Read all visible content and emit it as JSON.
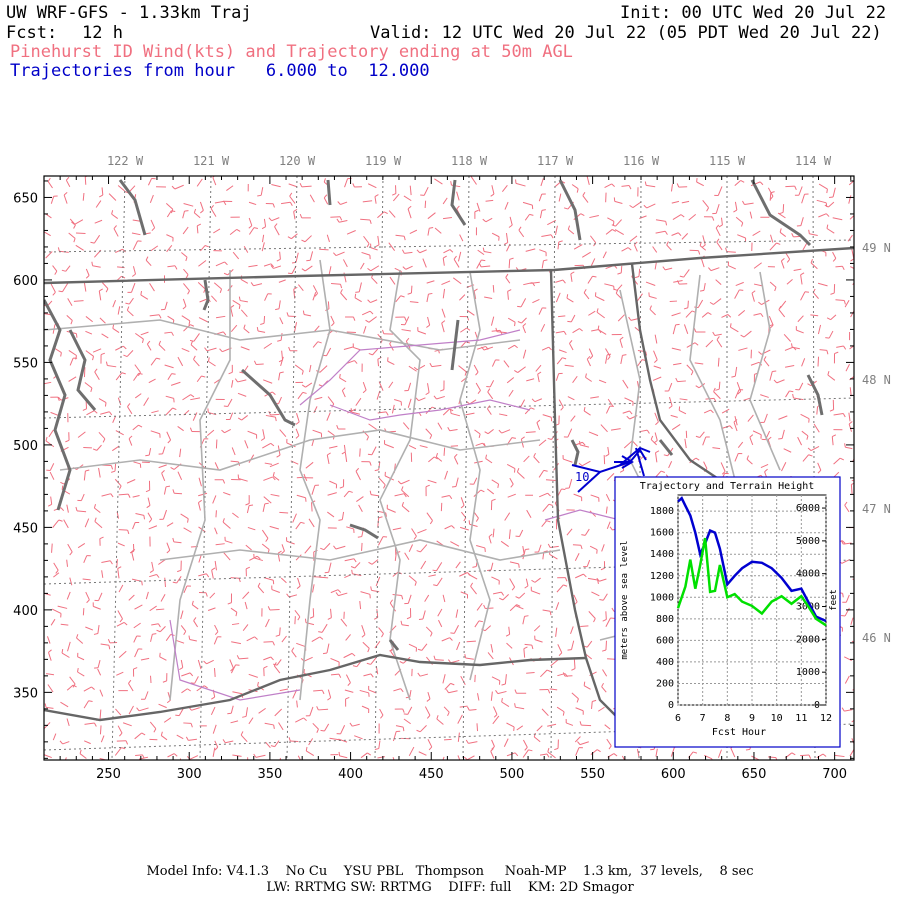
{
  "header": {
    "title": "UW WRF-GFS - 1.33km Traj",
    "init": "Init: 00 UTC Wed 20 Jul 22",
    "fcst_label": "Fcst:",
    "fcst_value": "12 h",
    "valid": "Valid: 12 UTC Wed 20 Jul 22 (05 PDT Wed 20 Jul 22)",
    "subtitle": "Pinehurst ID Wind(kts) and Trajectory ending at 50m AGL",
    "traj_range": "Trajectories from hour   6.000 to  12.000"
  },
  "map": {
    "x_ticks": [
      "250",
      "300",
      "350",
      "400",
      "450",
      "500",
      "550",
      "600",
      "650",
      "700"
    ],
    "y_ticks": [
      "650",
      "600",
      "550",
      "500",
      "450",
      "400",
      "350"
    ],
    "lon_labels": [
      "122 W",
      "121 W",
      "120 W",
      "119 W",
      "118 W",
      "117 W",
      "116 W",
      "115 W",
      "114 W"
    ],
    "lat_labels": [
      "49 N",
      "48 N",
      "47 N",
      "46 N"
    ],
    "traj_hour_label": "10",
    "colors": {
      "wind": "#f07080",
      "coast": "#707070",
      "border": "#909090",
      "state": "#555555",
      "river": "#c080c8",
      "trajectory": "#0000d0"
    }
  },
  "inset": {
    "title": "Trajectory and Terrain Height",
    "xlabel": "Fcst Hour",
    "ylabel_left": "meters above sea level",
    "ylabel_right": "feet",
    "x_ticks": [
      "6",
      "7",
      "8",
      "9",
      "10",
      "11",
      "12"
    ],
    "y_ticks_left": [
      "0",
      "200",
      "400",
      "600",
      "800",
      "1000",
      "1200",
      "1400",
      "1600",
      "1800"
    ],
    "y_ticks_right": [
      "0",
      "1000",
      "2000",
      "3000",
      "4000",
      "5000",
      "6000"
    ]
  },
  "chart_data": {
    "type": "line",
    "title": "Trajectory and Terrain Height",
    "xlabel": "Fcst Hour",
    "ylabel": "meters above sea level",
    "xlim": [
      6,
      12
    ],
    "ylim": [
      0,
      1950
    ],
    "x": [
      6.0,
      6.15,
      6.3,
      6.5,
      6.7,
      6.9,
      7.1,
      7.3,
      7.5,
      7.7,
      7.9,
      8.0,
      8.3,
      8.6,
      9.0,
      9.4,
      9.8,
      10.2,
      10.6,
      11.0,
      11.3,
      11.6,
      12.0
    ],
    "series": [
      {
        "name": "trajectory",
        "color": "#0000d0",
        "values": [
          1890,
          1920,
          1850,
          1760,
          1600,
          1400,
          1500,
          1620,
          1600,
          1450,
          1230,
          1120,
          1200,
          1270,
          1330,
          1320,
          1270,
          1180,
          1060,
          1080,
          950,
          820,
          780
        ]
      },
      {
        "name": "terrain",
        "color": "#00e000",
        "values": [
          900,
          1000,
          1100,
          1350,
          1080,
          1300,
          1550,
          1050,
          1060,
          1300,
          1100,
          1000,
          1030,
          960,
          920,
          850,
          960,
          1010,
          940,
          1010,
          910,
          800,
          740
        ]
      }
    ]
  },
  "footer": {
    "line1": "Model Info: V4.1.3    No Cu    YSU PBL   Thompson     Noah-MP    1.3 km,  37 levels,    8 sec",
    "line2": "LW: RRTMG SW: RRTMG    DIFF: full    KM: 2D Smagor"
  }
}
